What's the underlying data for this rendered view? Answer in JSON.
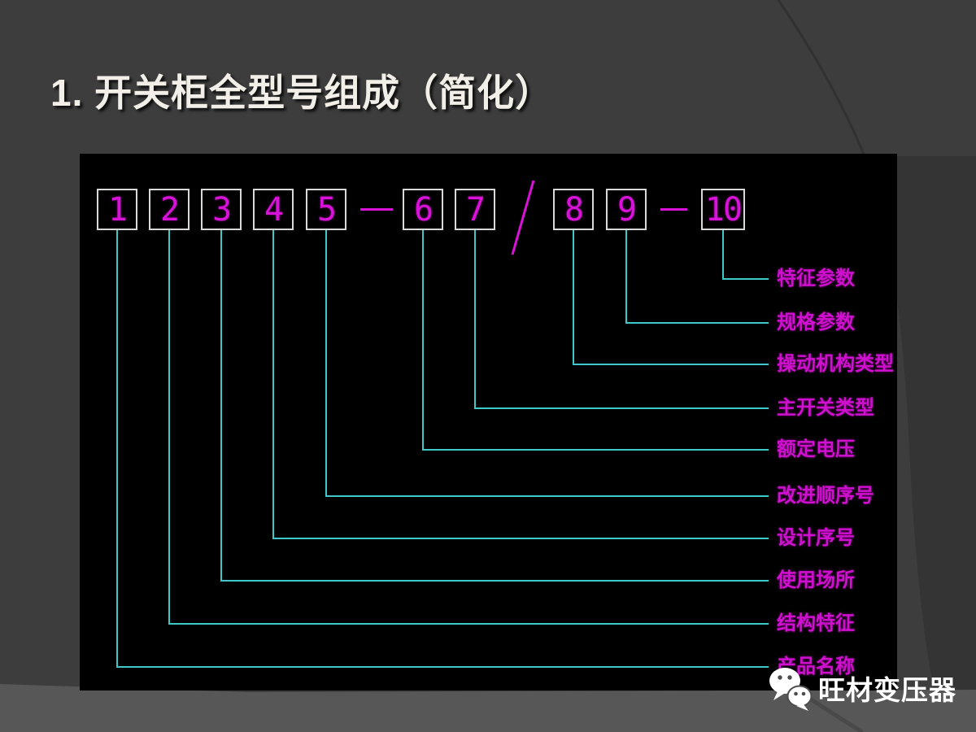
{
  "slide": {
    "title": "1. 开关柜全型号组成（简化）",
    "watermark": {
      "text": "旺材变压器",
      "icon": "wechat-icon"
    }
  },
  "diagram": {
    "type": "model-code-breakdown",
    "description_order": "box number to meaning",
    "boxes": [
      {
        "num": "1",
        "label": "产品名称"
      },
      {
        "num": "2",
        "label": "结构特征"
      },
      {
        "num": "3",
        "label": "使用场所"
      },
      {
        "num": "4",
        "label": "设计序号"
      },
      {
        "num": "5",
        "label": "改进顺序号"
      },
      {
        "num": "6",
        "label": "额定电压"
      },
      {
        "num": "7",
        "label": "主开关类型"
      },
      {
        "num": "8",
        "label": "操动机构类型"
      },
      {
        "num": "9",
        "label": "规格参数"
      },
      {
        "num": "10",
        "label": "特征参数"
      }
    ],
    "separators": [
      {
        "symbol": "—",
        "between": [
          "5",
          "6"
        ]
      },
      {
        "symbol": "/",
        "between": [
          "7",
          "8"
        ]
      },
      {
        "symbol": "—",
        "between": [
          "9",
          "10"
        ]
      }
    ],
    "colors": {
      "connector": "#3ec8c8",
      "number": "#d912d9",
      "label": "#cf10cf",
      "box_border": "#d9d9d9",
      "panel_bg": "#000000"
    }
  }
}
